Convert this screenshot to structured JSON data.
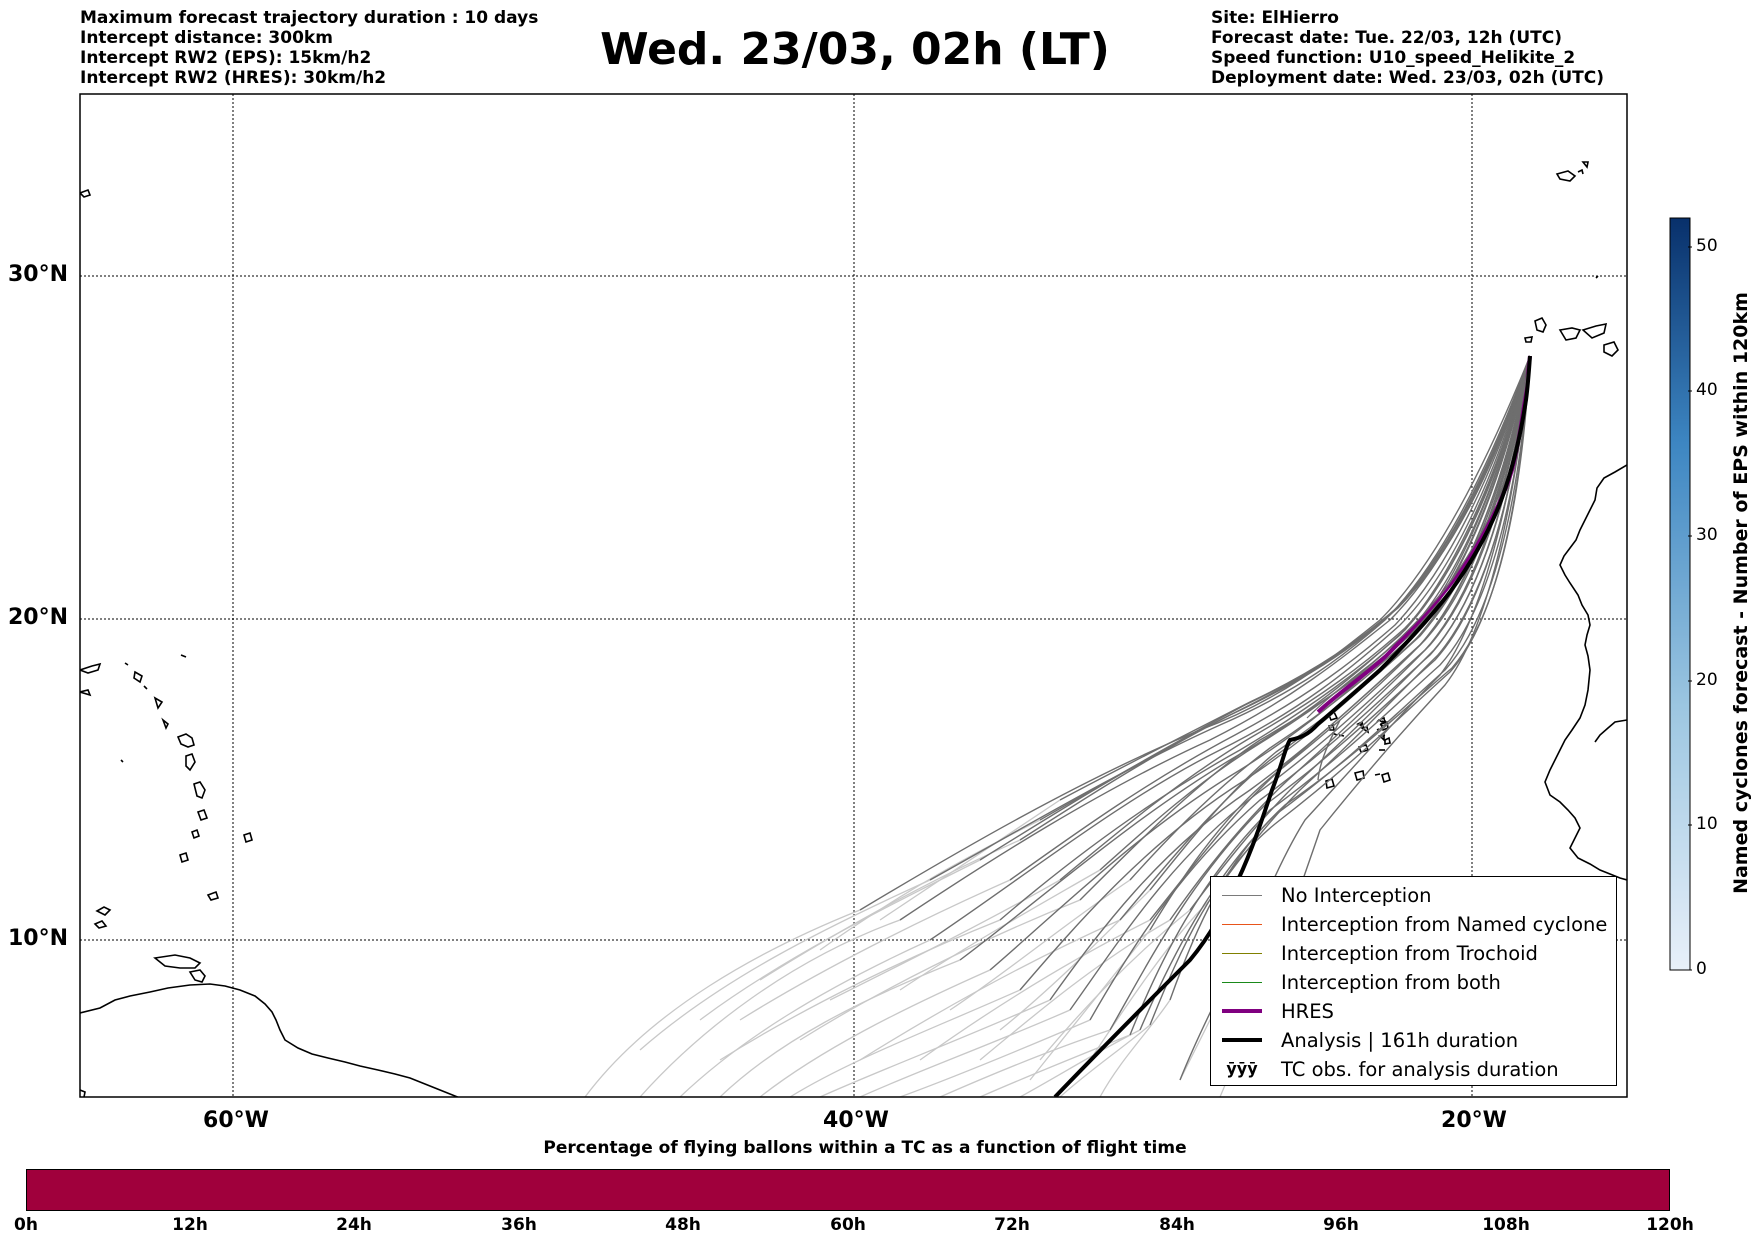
{
  "header": {
    "left_lines": [
      "Maximum forecast trajectory duration : 10 days",
      "Intercept distance: 300km",
      "Intercept RW2 (EPS):  15km/h2",
      "Intercept RW2 (HRES): 30km/h2"
    ],
    "title": "Wed. 23/03, 02h (LT)",
    "right_lines": [
      "Site: ElHierro",
      "Forecast date: Tue. 22/03, 12h (UTC)",
      "Speed function: U10_speed_Helikite_2",
      "Deployment date: Wed. 23/03, 02h (UTC)"
    ]
  },
  "map": {
    "lat_labels": [
      "30°N",
      "20°N",
      "10°N"
    ],
    "lon_labels": [
      "60°W",
      "40°W",
      "20°W"
    ]
  },
  "legend": [
    {
      "label": "No Interception",
      "color": "#7a7a7a"
    },
    {
      "label": "Interception from Named cyclone",
      "color": "#e8541a"
    },
    {
      "label": "Interception from Trochoid",
      "color": "#808000"
    },
    {
      "label": "Interception from both",
      "color": "#1a8a1a"
    },
    {
      "label": "HRES",
      "color": "#800080"
    },
    {
      "label": "Analysis | 161h duration",
      "color": "#000000"
    },
    {
      "label": "TC obs. for analysis duration",
      "color": "#000000",
      "icon": "ӯӯӯ"
    }
  ],
  "colorbar_right": {
    "label": "Named cyclones forecast - Number of EPS within 120km",
    "ticks": [
      "0",
      "10",
      "20",
      "30",
      "40",
      "50"
    ],
    "min": 0,
    "max": 52
  },
  "colorbar_bottom": {
    "title": "Percentage of flying ballons within a TC as a function of flight time",
    "ticks": [
      "0h",
      "12h",
      "24h",
      "36h",
      "48h",
      "60h",
      "72h",
      "84h",
      "96h",
      "108h",
      "120h"
    ],
    "color": "#a0003c"
  }
}
